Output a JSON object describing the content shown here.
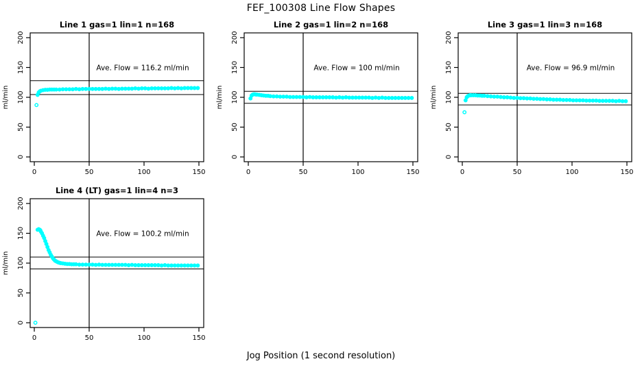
{
  "page": {
    "title": "FEF_100308  Line Flow Shapes",
    "xlabel_bottom": "Jog Position (1 second resolution)"
  },
  "colors": {
    "points": "#00ffff",
    "axis": "#000000",
    "background": "#ffffff"
  },
  "chart_data": [
    {
      "type": "scatter",
      "title": "Line 1 gas=1 lin=1 n=168",
      "annotation": "Ave. Flow =  116.2  ml/min",
      "ave_flow": 116.2,
      "ylabel": "ml/min",
      "xlim": [
        0,
        150
      ],
      "ylim": [
        0,
        200
      ],
      "xticks": [
        0,
        50,
        100,
        150
      ],
      "yticks": [
        0,
        50,
        100,
        150,
        200
      ],
      "vline_x": 50,
      "hlines": [
        127.8,
        104.6
      ],
      "points": [
        [
          2,
          87
        ],
        [
          3,
          104
        ],
        [
          4,
          108
        ],
        [
          5,
          110
        ],
        [
          6,
          111
        ],
        [
          8,
          112
        ],
        [
          10,
          112.5
        ],
        [
          12,
          112.5
        ],
        [
          14,
          113
        ],
        [
          16,
          113
        ],
        [
          18,
          113
        ],
        [
          20,
          113
        ],
        [
          23,
          113
        ],
        [
          26,
          113.5
        ],
        [
          29,
          113.5
        ],
        [
          32,
          113.5
        ],
        [
          35,
          113.5
        ],
        [
          38,
          114
        ],
        [
          41,
          113.5
        ],
        [
          44,
          114
        ],
        [
          47,
          114
        ],
        [
          50,
          114
        ],
        [
          53,
          114
        ],
        [
          56,
          114
        ],
        [
          59,
          114
        ],
        [
          62,
          114
        ],
        [
          65,
          114.5
        ],
        [
          68,
          114
        ],
        [
          71,
          114.5
        ],
        [
          74,
          114.5
        ],
        [
          77,
          114
        ],
        [
          80,
          114.5
        ],
        [
          83,
          114.5
        ],
        [
          86,
          114.5
        ],
        [
          89,
          114.5
        ],
        [
          92,
          115
        ],
        [
          95,
          114.5
        ],
        [
          98,
          115
        ],
        [
          101,
          115
        ],
        [
          104,
          114.5
        ],
        [
          107,
          115
        ],
        [
          110,
          115
        ],
        [
          113,
          115
        ],
        [
          116,
          115
        ],
        [
          119,
          115
        ],
        [
          122,
          115
        ],
        [
          125,
          115.5
        ],
        [
          128,
          115
        ],
        [
          131,
          115.5
        ],
        [
          134,
          115
        ],
        [
          137,
          115.5
        ],
        [
          140,
          115.5
        ],
        [
          143,
          115.5
        ],
        [
          146,
          115.5
        ],
        [
          149,
          115.5
        ]
      ]
    },
    {
      "type": "scatter",
      "title": "Line 2 gas=1 lin=2 n=168",
      "annotation": "Ave. Flow =  100  ml/min",
      "ave_flow": 100,
      "ylabel": "ml/min",
      "xlim": [
        0,
        150
      ],
      "ylim": [
        0,
        200
      ],
      "xticks": [
        0,
        50,
        100,
        150
      ],
      "yticks": [
        0,
        50,
        100,
        150,
        200
      ],
      "vline_x": 50,
      "hlines": [
        110,
        90
      ],
      "points": [
        [
          2,
          98
        ],
        [
          3,
          103
        ],
        [
          4,
          104.5
        ],
        [
          5,
          105
        ],
        [
          6,
          105
        ],
        [
          7,
          104.5
        ],
        [
          8,
          104.5
        ],
        [
          10,
          104
        ],
        [
          12,
          103.5
        ],
        [
          14,
          103
        ],
        [
          16,
          102.5
        ],
        [
          18,
          102.5
        ],
        [
          20,
          102
        ],
        [
          23,
          101.5
        ],
        [
          26,
          101.5
        ],
        [
          29,
          101
        ],
        [
          32,
          101
        ],
        [
          35,
          101
        ],
        [
          38,
          100.5
        ],
        [
          41,
          100.5
        ],
        [
          44,
          100.5
        ],
        [
          47,
          100.5
        ],
        [
          50,
          100.5
        ],
        [
          53,
          100
        ],
        [
          56,
          100.5
        ],
        [
          59,
          100
        ],
        [
          62,
          100
        ],
        [
          65,
          100
        ],
        [
          68,
          100
        ],
        [
          71,
          100
        ],
        [
          74,
          100
        ],
        [
          77,
          100
        ],
        [
          80,
          99.5
        ],
        [
          83,
          100
        ],
        [
          86,
          99.5
        ],
        [
          89,
          100
        ],
        [
          92,
          99.5
        ],
        [
          95,
          99.5
        ],
        [
          98,
          99.5
        ],
        [
          101,
          99.5
        ],
        [
          104,
          99.5
        ],
        [
          107,
          99.5
        ],
        [
          110,
          99.5
        ],
        [
          113,
          99
        ],
        [
          116,
          99.5
        ],
        [
          119,
          99
        ],
        [
          122,
          99.5
        ],
        [
          125,
          99
        ],
        [
          128,
          99
        ],
        [
          131,
          99
        ],
        [
          134,
          99
        ],
        [
          137,
          99
        ],
        [
          140,
          99
        ],
        [
          143,
          99
        ],
        [
          146,
          99
        ],
        [
          149,
          99
        ]
      ]
    },
    {
      "type": "scatter",
      "title": "Line 3 gas=1 lin=3 n=168",
      "annotation": "Ave. Flow =  96.9  ml/min",
      "ave_flow": 96.9,
      "ylabel": "ml/min",
      "xlim": [
        0,
        150
      ],
      "ylim": [
        0,
        200
      ],
      "xticks": [
        0,
        50,
        100,
        150
      ],
      "yticks": [
        0,
        50,
        100,
        150,
        200
      ],
      "vline_x": 50,
      "hlines": [
        106.6,
        87.2
      ],
      "points": [
        [
          2,
          75
        ],
        [
          3,
          95
        ],
        [
          4,
          100
        ],
        [
          5,
          102
        ],
        [
          6,
          103
        ],
        [
          7,
          103.5
        ],
        [
          8,
          103.5
        ],
        [
          10,
          103.5
        ],
        [
          12,
          103.5
        ],
        [
          14,
          103
        ],
        [
          16,
          103
        ],
        [
          18,
          102.5
        ],
        [
          20,
          102.5
        ],
        [
          23,
          102
        ],
        [
          26,
          101.5
        ],
        [
          29,
          101
        ],
        [
          32,
          101
        ],
        [
          35,
          100.5
        ],
        [
          38,
          100
        ],
        [
          41,
          100
        ],
        [
          44,
          99.5
        ],
        [
          47,
          99
        ],
        [
          50,
          99
        ],
        [
          53,
          98.5
        ],
        [
          56,
          98.5
        ],
        [
          59,
          98
        ],
        [
          62,
          98
        ],
        [
          65,
          97.5
        ],
        [
          68,
          97.5
        ],
        [
          71,
          97
        ],
        [
          74,
          97
        ],
        [
          77,
          96.5
        ],
        [
          80,
          96.5
        ],
        [
          83,
          96
        ],
        [
          86,
          96
        ],
        [
          89,
          96
        ],
        [
          92,
          95.5
        ],
        [
          95,
          95.5
        ],
        [
          98,
          95.5
        ],
        [
          101,
          95
        ],
        [
          104,
          95
        ],
        [
          107,
          95
        ],
        [
          110,
          95
        ],
        [
          113,
          94.5
        ],
        [
          116,
          94.5
        ],
        [
          119,
          94.5
        ],
        [
          122,
          94.5
        ],
        [
          125,
          94
        ],
        [
          128,
          94
        ],
        [
          131,
          94
        ],
        [
          134,
          94
        ],
        [
          137,
          94
        ],
        [
          140,
          93.5
        ],
        [
          143,
          94
        ],
        [
          146,
          93.5
        ],
        [
          149,
          93.5
        ]
      ]
    },
    {
      "type": "scatter",
      "title": "Line 4 (LT) gas=1 lin=4 n=3",
      "annotation": "Ave. Flow =  100.2  ml/min",
      "ave_flow": 100.2,
      "ylabel": "ml/min",
      "xlim": [
        0,
        150
      ],
      "ylim": [
        0,
        200
      ],
      "xticks": [
        0,
        50,
        100,
        150
      ],
      "yticks": [
        0,
        50,
        100,
        150,
        200
      ],
      "vline_x": 50,
      "hlines": [
        110.2,
        90.2
      ],
      "points": [
        [
          1,
          0
        ],
        [
          3,
          156
        ],
        [
          4,
          157
        ],
        [
          5,
          156
        ],
        [
          5.5,
          155
        ],
        [
          6,
          153
        ],
        [
          7,
          150
        ],
        [
          8,
          146
        ],
        [
          9,
          142
        ],
        [
          10,
          137
        ],
        [
          11,
          132
        ],
        [
          12,
          127
        ],
        [
          13,
          122
        ],
        [
          14,
          118
        ],
        [
          15,
          114
        ],
        [
          16,
          111
        ],
        [
          17,
          108
        ],
        [
          18,
          106
        ],
        [
          19,
          104
        ],
        [
          20,
          103
        ],
        [
          21,
          102
        ],
        [
          22,
          101
        ],
        [
          23,
          100.5
        ],
        [
          24,
          100
        ],
        [
          26,
          99.5
        ],
        [
          28,
          99
        ],
        [
          30,
          98.5
        ],
        [
          32,
          98.5
        ],
        [
          34,
          98
        ],
        [
          36,
          98
        ],
        [
          38,
          98
        ],
        [
          41,
          97.5
        ],
        [
          44,
          97.5
        ],
        [
          47,
          97.5
        ],
        [
          50,
          97.5
        ],
        [
          53,
          97.5
        ],
        [
          56,
          97
        ],
        [
          59,
          97.5
        ],
        [
          62,
          97
        ],
        [
          65,
          97
        ],
        [
          68,
          97
        ],
        [
          71,
          97
        ],
        [
          74,
          97
        ],
        [
          77,
          97
        ],
        [
          80,
          97
        ],
        [
          83,
          97
        ],
        [
          86,
          96.5
        ],
        [
          89,
          97
        ],
        [
          92,
          96.5
        ],
        [
          95,
          96.5
        ],
        [
          98,
          96.5
        ],
        [
          101,
          96.5
        ],
        [
          104,
          96.5
        ],
        [
          107,
          96.5
        ],
        [
          110,
          96.5
        ],
        [
          113,
          96.5
        ],
        [
          116,
          96
        ],
        [
          119,
          96.5
        ],
        [
          122,
          96
        ],
        [
          125,
          96
        ],
        [
          128,
          96
        ],
        [
          131,
          96
        ],
        [
          134,
          96
        ],
        [
          137,
          96
        ],
        [
          140,
          96
        ],
        [
          143,
          96
        ],
        [
          146,
          96
        ],
        [
          149,
          96
        ]
      ]
    }
  ]
}
